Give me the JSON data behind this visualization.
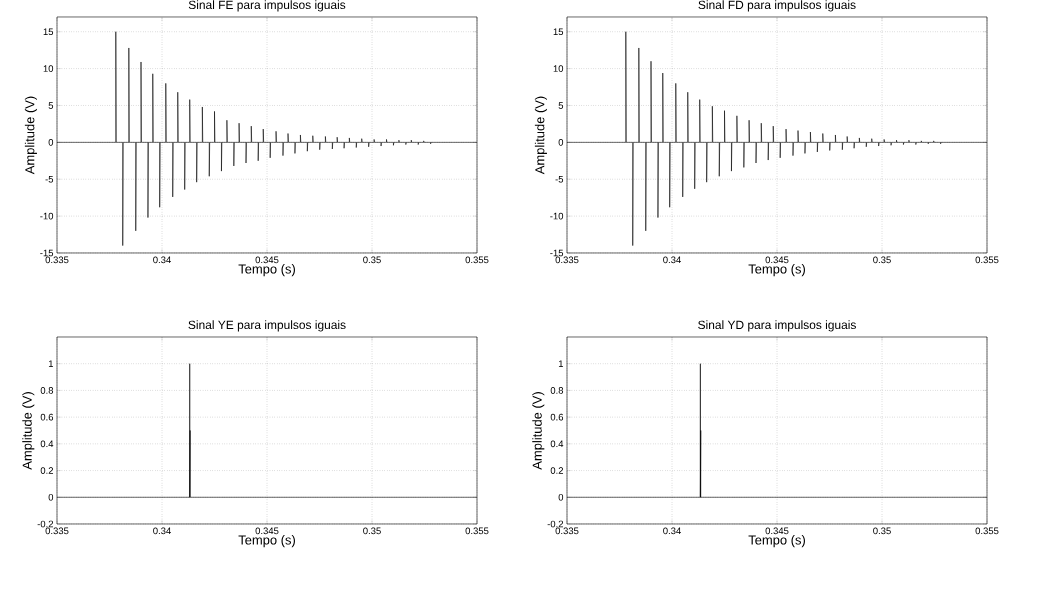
{
  "chart_data": [
    {
      "type": "line",
      "title": "Sinal FE para impulsos iguais",
      "xlabel": "Tempo (s)",
      "ylabel": "Amplitude (V)",
      "xlim": [
        0.335,
        0.355
      ],
      "ylim": [
        -15,
        17
      ],
      "xticks": [
        0.335,
        0.34,
        0.345,
        0.35,
        0.355
      ],
      "yticks": [
        -15,
        -10,
        -5,
        0,
        5,
        10,
        15
      ],
      "grid": true,
      "series": [
        {
          "color": "#000000",
          "x": [
            0.335,
            0.3378,
            0.3378,
            0.33782,
            0.33813,
            0.33813,
            0.33815,
            0.33842,
            0.33842,
            0.33844,
            0.33875,
            0.33875,
            0.33877,
            0.339,
            0.339,
            0.33902,
            0.33933,
            0.33933,
            0.33935,
            0.33956,
            0.33956,
            0.33958,
            0.33989,
            0.33989,
            0.33991,
            0.34018,
            0.34018,
            0.3402,
            0.34051,
            0.34051,
            0.34053,
            0.34075,
            0.34075,
            0.34077,
            0.34108,
            0.34108,
            0.3411,
            0.34132,
            0.34132,
            0.34134,
            0.34165,
            0.34165,
            0.34167,
            0.34192,
            0.34192,
            0.34194,
            0.34225,
            0.34225,
            0.34227,
            0.3425,
            0.3425,
            0.34252,
            0.34283,
            0.34283,
            0.34285,
            0.34309,
            0.34309,
            0.34311,
            0.34342,
            0.34342,
            0.34344,
            0.34367,
            0.34367,
            0.34369,
            0.344,
            0.344,
            0.34402,
            0.34425,
            0.34425,
            0.34427,
            0.34458,
            0.34458,
            0.3446,
            0.34482,
            0.34482,
            0.34484,
            0.34515,
            0.34515,
            0.34517,
            0.34543,
            0.34543,
            0.34545,
            0.34576,
            0.34576,
            0.34578,
            0.346,
            0.346,
            0.34602,
            0.34633,
            0.34633,
            0.34635,
            0.34659,
            0.34659,
            0.34661,
            0.34692,
            0.34692,
            0.34694,
            0.34718,
            0.34718,
            0.3472,
            0.34751,
            0.34751,
            0.34753,
            0.34778,
            0.34778,
            0.3478,
            0.34811,
            0.34811,
            0.34813,
            0.34834,
            0.34834,
            0.34836,
            0.34867,
            0.34867,
            0.34869,
            0.34892,
            0.34892,
            0.34894,
            0.34925,
            0.34925,
            0.34927,
            0.34951,
            0.34951,
            0.34953,
            0.34984,
            0.34984,
            0.34986,
            0.3501,
            0.3501,
            0.35012,
            0.35043,
            0.35043,
            0.35045,
            0.35069,
            0.35069,
            0.35071,
            0.35102,
            0.35102,
            0.35104,
            0.35128,
            0.35128,
            0.3513,
            0.35161,
            0.35161,
            0.35163,
            0.35187,
            0.35187,
            0.35189,
            0.3522,
            0.3522,
            0.35222,
            0.35246,
            0.35246,
            0.35248,
            0.35279,
            0.35279,
            0.35281,
            0.355
          ],
          "values": [
            0,
            0,
            15,
            0,
            0,
            -14,
            0,
            0,
            12.8,
            0,
            0,
            -12,
            0,
            0,
            10.9,
            0,
            0,
            -10.2,
            0,
            0,
            9.3,
            0,
            0,
            -8.8,
            0,
            0,
            8.0,
            0,
            0,
            -7.4,
            0,
            0,
            6.8,
            0,
            0,
            -6.4,
            0,
            0,
            5.8,
            0,
            0,
            -5.4,
            0,
            0,
            4.8,
            0,
            0,
            -4.6,
            0,
            0,
            4.2,
            0,
            0,
            -3.9,
            0,
            0,
            3.0,
            0,
            0,
            -3.2,
            0,
            0,
            2.6,
            0,
            0,
            -2.8,
            0,
            0,
            2.2,
            0,
            0,
            -2.5,
            0,
            0,
            1.8,
            0,
            0,
            -2.1,
            0,
            0,
            1.5,
            0,
            0,
            -1.8,
            0,
            0,
            1.2,
            0,
            0,
            -1.5,
            0,
            0,
            1.0,
            0,
            0,
            -1.2,
            0,
            0,
            0.9,
            0,
            0,
            -1.0,
            0,
            0,
            0.8,
            0,
            0,
            -0.9,
            0,
            0,
            0.7,
            0,
            0,
            -0.8,
            0,
            0,
            0.6,
            0,
            0,
            -0.7,
            0,
            0,
            0.5,
            0,
            0,
            -0.6,
            0,
            0,
            0.4,
            0,
            0,
            -0.5,
            0,
            0,
            0.4,
            0,
            0,
            -0.4,
            0,
            0,
            0.3,
            0,
            0,
            -0.3,
            0,
            0,
            0.3,
            0,
            0,
            -0.3,
            0,
            0,
            0.2,
            0,
            0,
            -0.2,
            0,
            0
          ]
        }
      ]
    },
    {
      "type": "line",
      "title": "Sinal FD para impulsos iguais",
      "xlabel": "Tempo (s)",
      "ylabel": "Amplitude (V)",
      "xlim": [
        0.335,
        0.355
      ],
      "ylim": [
        -15,
        17
      ],
      "xticks": [
        0.335,
        0.34,
        0.345,
        0.35,
        0.355
      ],
      "yticks": [
        -15,
        -10,
        -5,
        0,
        5,
        10,
        15
      ],
      "grid": true,
      "series": [
        {
          "color": "#000000",
          "x": [
            0.335,
            0.3378,
            0.3378,
            0.33782,
            0.33813,
            0.33813,
            0.33815,
            0.33842,
            0.33842,
            0.33844,
            0.33875,
            0.33875,
            0.33877,
            0.339,
            0.339,
            0.33902,
            0.33933,
            0.33933,
            0.33935,
            0.33956,
            0.33956,
            0.33958,
            0.33989,
            0.33989,
            0.33991,
            0.34018,
            0.34018,
            0.3402,
            0.34051,
            0.34051,
            0.34053,
            0.34075,
            0.34075,
            0.34077,
            0.34108,
            0.34108,
            0.3411,
            0.34132,
            0.34132,
            0.34134,
            0.34165,
            0.34165,
            0.34167,
            0.34192,
            0.34192,
            0.34194,
            0.34225,
            0.34225,
            0.34227,
            0.3425,
            0.3425,
            0.34252,
            0.34283,
            0.34283,
            0.34285,
            0.34309,
            0.34309,
            0.34311,
            0.34342,
            0.34342,
            0.34344,
            0.34367,
            0.34367,
            0.34369,
            0.344,
            0.344,
            0.34402,
            0.34425,
            0.34425,
            0.34427,
            0.34458,
            0.34458,
            0.3446,
            0.34482,
            0.34482,
            0.34484,
            0.34515,
            0.34515,
            0.34517,
            0.34543,
            0.34543,
            0.34545,
            0.34576,
            0.34576,
            0.34578,
            0.346,
            0.346,
            0.34602,
            0.34633,
            0.34633,
            0.34635,
            0.34659,
            0.34659,
            0.34661,
            0.34692,
            0.34692,
            0.34694,
            0.34718,
            0.34718,
            0.3472,
            0.34751,
            0.34751,
            0.34753,
            0.34778,
            0.34778,
            0.3478,
            0.34811,
            0.34811,
            0.34813,
            0.34834,
            0.34834,
            0.34836,
            0.34867,
            0.34867,
            0.34869,
            0.34892,
            0.34892,
            0.34894,
            0.34925,
            0.34925,
            0.34927,
            0.34951,
            0.34951,
            0.34953,
            0.34984,
            0.34984,
            0.34986,
            0.3501,
            0.3501,
            0.35012,
            0.35043,
            0.35043,
            0.35045,
            0.35069,
            0.35069,
            0.35071,
            0.35102,
            0.35102,
            0.35104,
            0.35128,
            0.35128,
            0.3513,
            0.35161,
            0.35161,
            0.35163,
            0.35187,
            0.35187,
            0.35189,
            0.3522,
            0.3522,
            0.35222,
            0.35246,
            0.35246,
            0.35248,
            0.35279,
            0.35279,
            0.35281,
            0.355
          ],
          "values": [
            0,
            0,
            15,
            0,
            0,
            -14,
            0,
            0,
            12.8,
            0,
            0,
            -12,
            0,
            0,
            11,
            0,
            0,
            -10.2,
            0,
            0,
            9.4,
            0,
            0,
            -8.8,
            0,
            0,
            8.0,
            0,
            0,
            -7.4,
            0,
            0,
            6.8,
            0,
            0,
            -6.3,
            0,
            0,
            5.8,
            0,
            0,
            -5.4,
            0,
            0,
            4.9,
            0,
            0,
            -4.6,
            0,
            0,
            4.3,
            0,
            0,
            -3.9,
            0,
            0,
            3.6,
            0,
            0,
            -3.4,
            0,
            0,
            3.0,
            0,
            0,
            -2.8,
            0,
            0,
            2.6,
            0,
            0,
            -2.4,
            0,
            0,
            2.2,
            0,
            0,
            -2.1,
            0,
            0,
            1.8,
            0,
            0,
            -1.8,
            0,
            0,
            1.6,
            0,
            0,
            -1.5,
            0,
            0,
            1.4,
            0,
            0,
            -1.3,
            0,
            0,
            1.2,
            0,
            0,
            -1.1,
            0,
            0,
            1.0,
            0,
            0,
            -1.0,
            0,
            0,
            0.8,
            0,
            0,
            -0.8,
            0,
            0,
            0.6,
            0,
            0,
            -0.6,
            0,
            0,
            0.5,
            0,
            0,
            -0.5,
            0,
            0,
            0.4,
            0,
            0,
            -0.4,
            0,
            0,
            0.3,
            0,
            0,
            -0.3,
            0,
            0,
            0.3,
            0,
            0,
            -0.3,
            0,
            0,
            0.2,
            0,
            0,
            -0.2,
            0,
            0,
            0.2,
            0,
            0,
            -0.2,
            0,
            0
          ]
        }
      ]
    },
    {
      "type": "line",
      "title": "Sinal YE para impulsos iguais",
      "xlabel": "Tempo (s)",
      "ylabel": "Amplitude (V)",
      "xlim": [
        0.335,
        0.355
      ],
      "ylim": [
        -0.2,
        1.2
      ],
      "xticks": [
        0.335,
        0.34,
        0.345,
        0.35,
        0.355
      ],
      "yticks": [
        -0.2,
        0,
        0.2,
        0.4,
        0.6,
        0.8,
        1
      ],
      "grid": true,
      "series": [
        {
          "color": "#000000",
          "x": [
            0.335,
            0.34132,
            0.34132,
            0.34132,
            0.34134,
            0.34134,
            0.355
          ],
          "values": [
            0,
            0,
            1,
            0,
            0.5,
            0,
            0
          ]
        }
      ]
    },
    {
      "type": "line",
      "title": "Sinal YD para impulsos iguais",
      "xlabel": "Tempo (s)",
      "ylabel": "Amplitude (V)",
      "xlim": [
        0.335,
        0.355
      ],
      "ylim": [
        -0.2,
        1.2
      ],
      "xticks": [
        0.335,
        0.34,
        0.345,
        0.35,
        0.355
      ],
      "yticks": [
        -0.2,
        0,
        0.2,
        0.4,
        0.6,
        0.8,
        1
      ],
      "grid": true,
      "series": [
        {
          "color": "#000000",
          "x": [
            0.335,
            0.34135,
            0.34135,
            0.34135,
            0.34137,
            0.34137,
            0.355
          ],
          "values": [
            0,
            0,
            1,
            0,
            0.5,
            0,
            0
          ]
        }
      ]
    }
  ]
}
